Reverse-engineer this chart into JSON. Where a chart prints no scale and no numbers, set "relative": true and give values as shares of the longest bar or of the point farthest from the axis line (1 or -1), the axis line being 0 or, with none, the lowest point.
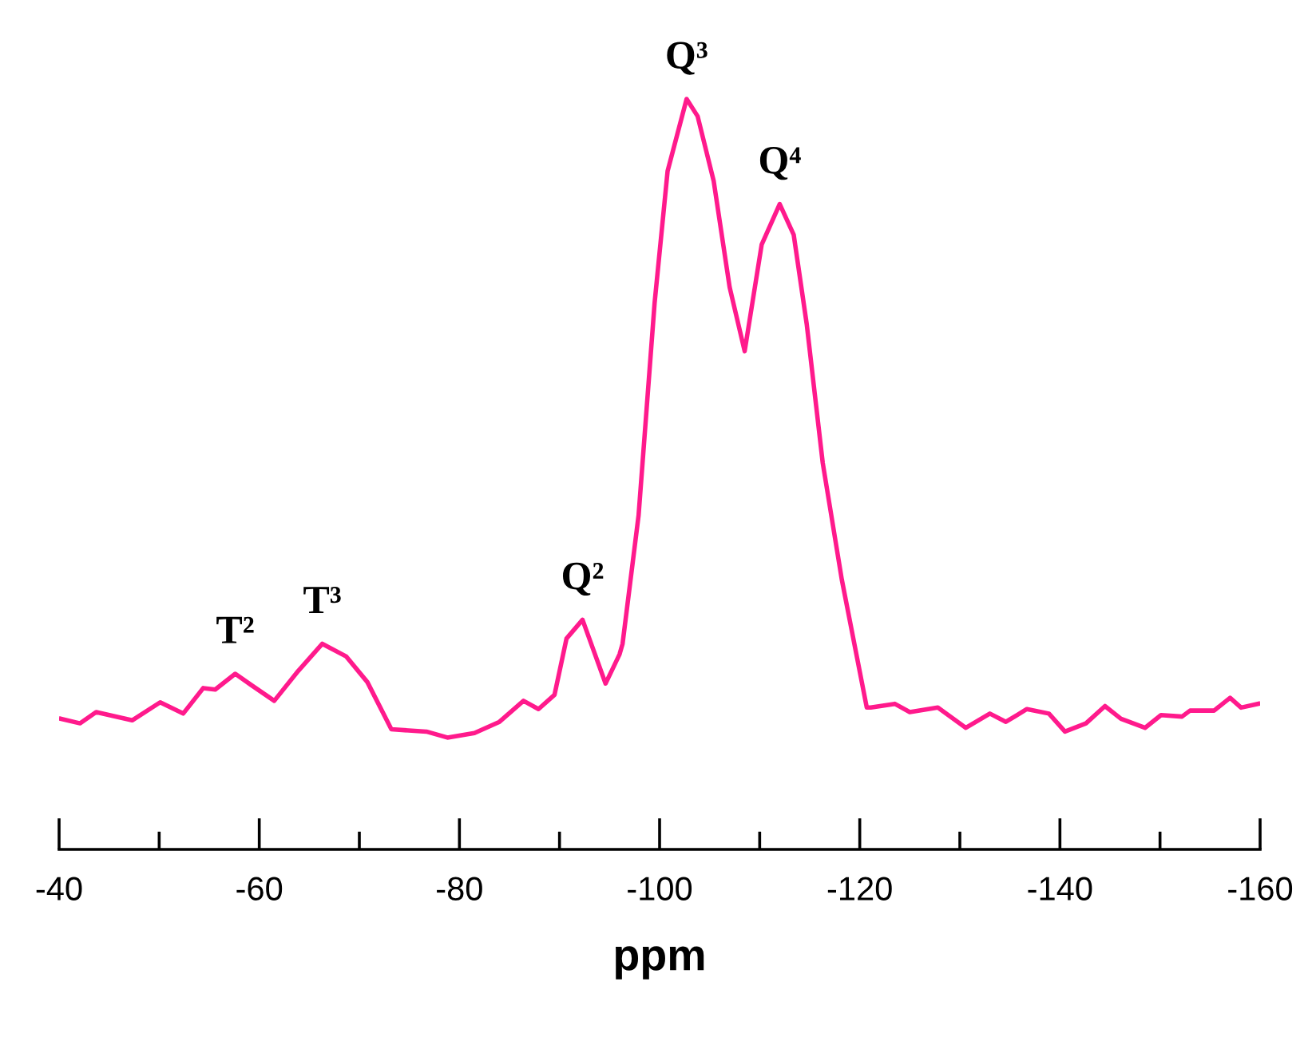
{
  "chart_data": {
    "type": "line",
    "relative": true,
    "xlabel": "ppm",
    "color": "#ff1a8c",
    "x": [
      -40.2,
      -42.1,
      -43.7,
      -47.3,
      -50.1,
      -52.4,
      -54.4,
      -55.6,
      -57.6,
      -59.2,
      -61.5,
      -63.9,
      -66.3,
      -68.7,
      -70.8,
      -73.2,
      -76.7,
      -78.8,
      -81.5,
      -84.0,
      -86.4,
      -87.9,
      -89.5,
      -90.7,
      -92.3,
      -94.6,
      -96.0,
      -96.3,
      -97.9,
      -99.5,
      -100.8,
      -102.7,
      -103.8,
      -105.4,
      -107.0,
      -108.5,
      -110.2,
      -112.0,
      -113.4,
      -114.7,
      -116.3,
      -118.2,
      -120.7,
      -121.1,
      -123.5,
      -125.0,
      -127.8,
      -130.6,
      -133.0,
      -134.6,
      -136.7,
      -138.9,
      -140.5,
      -142.6,
      -144.5,
      -146.1,
      -148.5,
      -150.1,
      -152.2,
      -153.0,
      -155.4,
      -157.0,
      -158.1,
      -159.8
    ],
    "values": [
      0.174,
      0.168,
      0.183,
      0.172,
      0.196,
      0.181,
      0.215,
      0.213,
      0.234,
      0.219,
      0.198,
      0.238,
      0.274,
      0.257,
      0.223,
      0.16,
      0.157,
      0.149,
      0.155,
      0.17,
      0.198,
      0.187,
      0.206,
      0.281,
      0.306,
      0.221,
      0.26,
      0.274,
      0.445,
      0.728,
      0.904,
      1.0,
      0.977,
      0.891,
      0.749,
      0.664,
      0.806,
      0.86,
      0.819,
      0.7,
      0.515,
      0.36,
      0.189,
      0.189,
      0.194,
      0.183,
      0.189,
      0.162,
      0.181,
      0.17,
      0.187,
      0.181,
      0.157,
      0.168,
      0.191,
      0.174,
      0.162,
      0.179,
      0.177,
      0.185,
      0.185,
      0.202,
      0.189,
      0.194
    ],
    "xlim": [
      -40,
      -160
    ],
    "xticks": [
      -40,
      {
        "value": -50,
        "label": null
      },
      -60,
      {
        "value": -70,
        "label": null
      },
      -80,
      {
        "value": -90,
        "label": null
      },
      -100,
      {
        "value": -110,
        "label": null
      },
      -120,
      {
        "value": -130,
        "label": null
      },
      -140,
      {
        "value": -150,
        "label": null
      },
      -160
    ],
    "annotations": [
      {
        "text": "T²",
        "x": -57.6,
        "y": 0.234
      },
      {
        "text": "T³",
        "x": -66.3,
        "y": 0.274
      },
      {
        "text": "Q²",
        "x": -92.3,
        "y": 0.306
      },
      {
        "text": "Q³",
        "x": -102.7,
        "y": 1.0
      },
      {
        "text": "Q⁴",
        "x": -112.0,
        "y": 0.86
      }
    ]
  }
}
